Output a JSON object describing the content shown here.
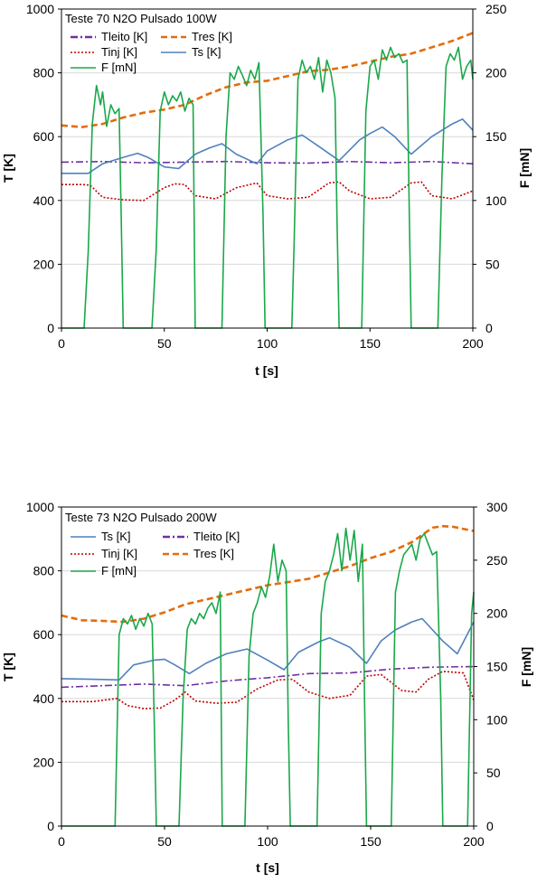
{
  "chart_data": [
    {
      "type": "line",
      "title": "Teste 70 N2O Pulsado 100W",
      "xlabel": "t [s]",
      "ylabel": "T [K]",
      "y2label": "F [mN]",
      "xlim": [
        0,
        200
      ],
      "ylim": [
        0,
        1000
      ],
      "y2lim": [
        0,
        250
      ],
      "xticks": [
        "0",
        "50",
        "100",
        "150",
        "200"
      ],
      "yticks": [
        "0",
        "200",
        "400",
        "600",
        "800",
        "1000"
      ],
      "y2ticks": [
        "0",
        "50",
        "100",
        "150",
        "200",
        "250"
      ],
      "legend": [
        "Tleito [K]",
        "Tres [K]",
        "Tinj [K]",
        "Ts [K]",
        "F [mN]"
      ],
      "legend_position": "top-left",
      "series": [
        {
          "name": "Tleito [K]",
          "axis": "left",
          "color": "#7030a0",
          "x": [
            0,
            20,
            40,
            60,
            80,
            100,
            120,
            140,
            160,
            180,
            200
          ],
          "y": [
            520,
            522,
            518,
            520,
            522,
            518,
            517,
            522,
            518,
            522,
            515
          ]
        },
        {
          "name": "Tres [K]",
          "axis": "left",
          "color": "#e46c0a",
          "x": [
            0,
            10,
            20,
            30,
            40,
            50,
            60,
            70,
            80,
            90,
            100,
            110,
            120,
            130,
            140,
            150,
            160,
            170,
            180,
            190,
            200
          ],
          "y": [
            635,
            630,
            640,
            660,
            675,
            685,
            700,
            730,
            755,
            770,
            775,
            790,
            805,
            810,
            820,
            835,
            850,
            860,
            880,
            900,
            925
          ]
        },
        {
          "name": "Tinj [K]",
          "axis": "left",
          "color": "#c00000",
          "x": [
            0,
            10,
            14,
            20,
            30,
            40,
            50,
            55,
            60,
            65,
            75,
            85,
            95,
            100,
            110,
            120,
            130,
            135,
            140,
            150,
            160,
            170,
            175,
            180,
            190,
            200
          ],
          "y": [
            450,
            450,
            448,
            410,
            402,
            400,
            440,
            452,
            450,
            415,
            405,
            440,
            455,
            415,
            405,
            410,
            455,
            458,
            430,
            405,
            410,
            455,
            458,
            415,
            405,
            430
          ]
        },
        {
          "name": "Ts [K]",
          "axis": "left",
          "color": "#4f81bd",
          "x": [
            0,
            13,
            20,
            30,
            37,
            42,
            50,
            57,
            65,
            72,
            78,
            85,
            95,
            100,
            110,
            117,
            125,
            135,
            145,
            150,
            156,
            162,
            170,
            180,
            190,
            195,
            200
          ],
          "y": [
            485,
            485,
            515,
            535,
            548,
            535,
            505,
            500,
            545,
            565,
            578,
            545,
            515,
            555,
            590,
            605,
            570,
            525,
            590,
            610,
            630,
            600,
            545,
            600,
            640,
            655,
            620
          ]
        },
        {
          "name": "F [mN]",
          "axis": "right",
          "color": "#1aa84a",
          "x": [
            0,
            11,
            13,
            15,
            17,
            19,
            20,
            22,
            24,
            26,
            28,
            29,
            30,
            44,
            46,
            48,
            50,
            52,
            54,
            56,
            58,
            60,
            62,
            64,
            65,
            78,
            80,
            82,
            84,
            86,
            88,
            90,
            92,
            94,
            96,
            98,
            99,
            100,
            112,
            113,
            115,
            117,
            119,
            121,
            123,
            125,
            127,
            129,
            131,
            133,
            134,
            135,
            146,
            148,
            150,
            152,
            154,
            156,
            158,
            160,
            162,
            164,
            166,
            168,
            169,
            170,
            183,
            185,
            187,
            189,
            191,
            193,
            195,
            197,
            199,
            200
          ],
          "y": [
            0,
            0,
            60,
            160,
            190,
            175,
            185,
            158,
            175,
            168,
            172,
            90,
            0,
            0,
            60,
            170,
            185,
            175,
            182,
            178,
            185,
            170,
            180,
            175,
            0,
            0,
            150,
            200,
            195,
            205,
            198,
            190,
            202,
            195,
            208,
            90,
            0,
            0,
            0,
            60,
            195,
            210,
            200,
            205,
            195,
            212,
            185,
            210,
            200,
            180,
            80,
            0,
            0,
            170,
            205,
            210,
            195,
            218,
            210,
            220,
            212,
            215,
            208,
            210,
            100,
            0,
            0,
            120,
            205,
            215,
            210,
            220,
            195,
            205,
            210,
            195
          ]
        }
      ]
    },
    {
      "type": "line",
      "title": "Teste 73 N2O Pulsado 200W",
      "xlabel": "t [s]",
      "ylabel": "T [K]",
      "y2label": "F [mN]",
      "xlim": [
        0,
        200
      ],
      "ylim": [
        0,
        1000
      ],
      "y2lim": [
        0,
        300
      ],
      "xticks": [
        "0",
        "50",
        "100",
        "150",
        "200"
      ],
      "yticks": [
        "0",
        "200",
        "400",
        "600",
        "800",
        "1000"
      ],
      "y2ticks": [
        "0",
        "50",
        "100",
        "150",
        "200",
        "250",
        "300"
      ],
      "legend": [
        "Ts  [K]",
        "Tleito  [K]",
        "Tinj [K]",
        "Tres [K]",
        "F [mN]"
      ],
      "legend_position": "top-left",
      "series": [
        {
          "name": "Ts  [K]",
          "axis": "left",
          "color": "#4f81bd",
          "x": [
            0,
            15,
            28,
            35,
            45,
            50,
            55,
            62,
            70,
            80,
            90,
            100,
            108,
            115,
            125,
            130,
            140,
            148,
            155,
            162,
            170,
            175,
            185,
            192,
            200
          ],
          "y": [
            462,
            460,
            458,
            505,
            520,
            523,
            505,
            478,
            510,
            540,
            555,
            520,
            490,
            545,
            578,
            590,
            560,
            510,
            580,
            615,
            640,
            650,
            580,
            540,
            640
          ]
        },
        {
          "name": "Tleito  [K]",
          "axis": "left",
          "color": "#7030a0",
          "x": [
            0,
            20,
            40,
            60,
            80,
            100,
            120,
            140,
            160,
            180,
            200
          ],
          "y": [
            435,
            440,
            445,
            440,
            455,
            465,
            478,
            480,
            492,
            498,
            500
          ]
        },
        {
          "name": "Tinj [K]",
          "axis": "left",
          "color": "#c00000",
          "x": [
            0,
            15,
            27,
            32,
            40,
            48,
            55,
            60,
            65,
            75,
            85,
            95,
            105,
            112,
            120,
            130,
            140,
            148,
            155,
            165,
            172,
            178,
            185,
            195,
            200
          ],
          "y": [
            390,
            390,
            400,
            378,
            368,
            370,
            395,
            420,
            392,
            385,
            388,
            430,
            458,
            460,
            420,
            400,
            410,
            470,
            475,
            425,
            420,
            460,
            485,
            480,
            395
          ]
        },
        {
          "name": "Tres [K]",
          "axis": "left",
          "color": "#e46c0a",
          "x": [
            0,
            10,
            20,
            30,
            40,
            50,
            60,
            70,
            80,
            90,
            100,
            110,
            120,
            130,
            140,
            150,
            160,
            170,
            180,
            185,
            190,
            200
          ],
          "y": [
            660,
            645,
            643,
            640,
            650,
            670,
            695,
            710,
            725,
            740,
            755,
            765,
            775,
            795,
            815,
            840,
            860,
            890,
            935,
            940,
            938,
            925
          ]
        },
        {
          "name": "F [mN]",
          "axis": "right",
          "color": "#1aa84a",
          "x": [
            0,
            26,
            28,
            30,
            32,
            34,
            36,
            38,
            40,
            42,
            44,
            45,
            46,
            57,
            59,
            61,
            63,
            65,
            67,
            69,
            71,
            73,
            75,
            77,
            78,
            89,
            91,
            93,
            95,
            97,
            99,
            101,
            103,
            105,
            107,
            109,
            110,
            111,
            124,
            126,
            128,
            130,
            132,
            134,
            136,
            138,
            140,
            142,
            144,
            146,
            147,
            148,
            160,
            162,
            164,
            166,
            168,
            170,
            172,
            174,
            176,
            178,
            180,
            182,
            184,
            185,
            197,
            199,
            200
          ],
          "y": [
            0,
            0,
            180,
            195,
            190,
            198,
            185,
            195,
            188,
            200,
            190,
            100,
            0,
            0,
            120,
            185,
            195,
            190,
            200,
            195,
            205,
            210,
            200,
            220,
            0,
            0,
            160,
            200,
            210,
            225,
            215,
            235,
            265,
            230,
            250,
            240,
            100,
            0,
            0,
            200,
            230,
            240,
            255,
            275,
            240,
            280,
            250,
            278,
            230,
            265,
            120,
            0,
            0,
            220,
            240,
            255,
            260,
            265,
            250,
            270,
            275,
            265,
            255,
            258,
            120,
            0,
            0,
            200,
            220
          ]
        }
      ]
    }
  ]
}
